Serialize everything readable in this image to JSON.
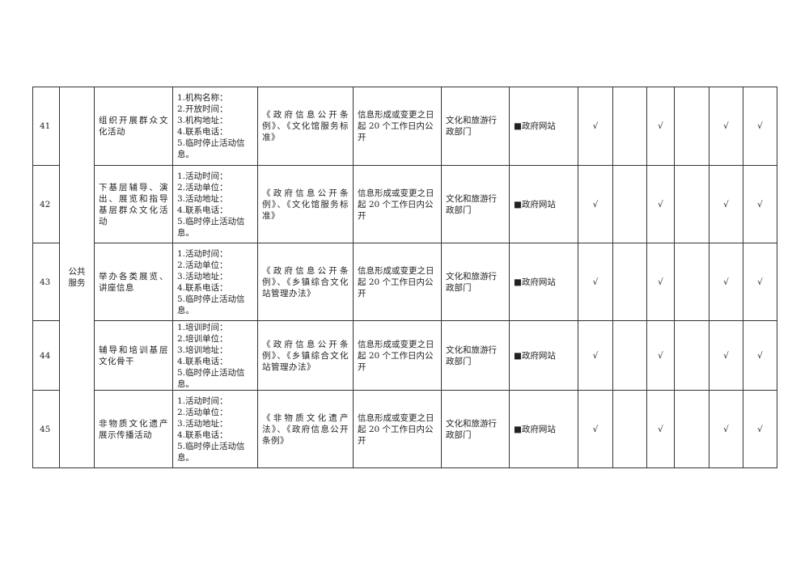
{
  "category": "公共服务",
  "rows": [
    {
      "num": "41",
      "item": "组织开展群众文化活动",
      "content": [
        "1.机构名称：",
        "2.开放时间：",
        "3.机构地址：",
        "4.联系电话：",
        "5.临时停止活动信息。"
      ],
      "basis": "《政府信息公开条例》、《文化馆服务标准》",
      "time": "信息形成或变更之日起 20 个工作日内公开",
      "dept": "文化和旅游行政部门",
      "channel": "■政府网站",
      "checks": [
        "√",
        "",
        "√",
        "",
        "√",
        "√"
      ]
    },
    {
      "num": "42",
      "item": "下基层辅导、演出、展览和指导基层群众文化活动",
      "content": [
        "1.活动时间：",
        "2.活动单位：",
        "3.活动地址：",
        "4.联系电话：",
        "5.临时停止活动信息。"
      ],
      "basis": "《政府信息公开条例》、《文化馆服务标准》",
      "time": "信息形成或变更之日起 20 个工作日内公开",
      "dept": "文化和旅游行政部门",
      "channel": "■政府网站",
      "checks": [
        "√",
        "",
        "√",
        "",
        "√",
        "√"
      ]
    },
    {
      "num": "43",
      "item": "举办各类展览、讲座信息",
      "content": [
        "1.活动时间：",
        "2.活动单位：",
        "3.活动地址：",
        "4.联系电话：",
        "5.临时停止活动信息。"
      ],
      "basis": "《政府信息公开条例》、《乡镇综合文化站管理办法》",
      "time": "信息形成或变更之日起 20 个工作日内公开",
      "dept": "文化和旅游行政部门",
      "channel": "■政府网站",
      "checks": [
        "√",
        "",
        "√",
        "",
        "√",
        "√"
      ]
    },
    {
      "num": "44",
      "item": "辅导和培训基层文化骨干",
      "content": [
        "1.培训时间：",
        "2.培训单位：",
        "3.培训地址：",
        "4.联系电话：",
        "5.临时停止活动信息。"
      ],
      "basis": "《政府信息公开条例》、《乡镇综合文化站管理办法》",
      "time": "信息形成或变更之日起 20 个工作日内公开",
      "dept": "文化和旅游行政部门",
      "channel": "■政府网站",
      "checks": [
        "√",
        "",
        "√",
        "",
        "√",
        "√"
      ]
    },
    {
      "num": "45",
      "item": "非物质文化遗产展示传播活动",
      "content": [
        "1.活动时间：",
        "2.活动单位：",
        "3.活动地址：",
        "4.联系电话：",
        "5.临时停止活动信息。"
      ],
      "basis": "《非物质文化遗产法》、《政府信息公开条例》",
      "time": "信息形成或变更之日起 20 个工作日内公开",
      "dept": "文化和旅游行政部门",
      "channel": "■政府网站",
      "checks": [
        "√",
        "",
        "√",
        "",
        "√",
        "√"
      ]
    }
  ]
}
